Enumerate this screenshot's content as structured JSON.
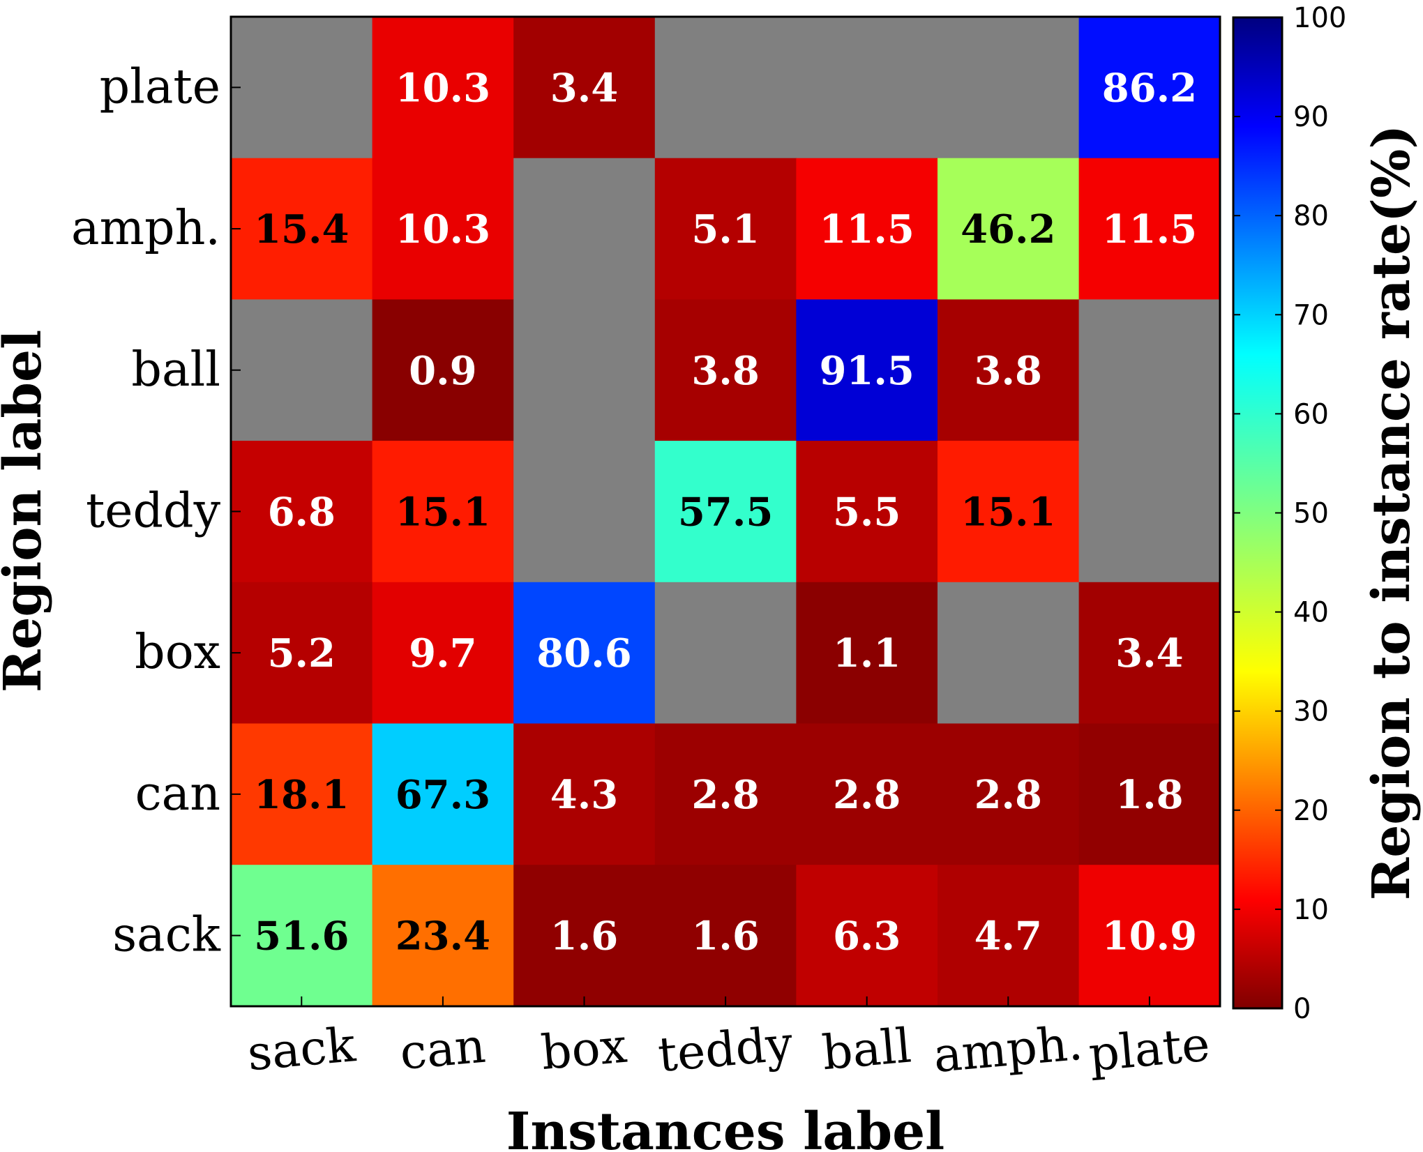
{
  "chart_data": {
    "type": "heatmap",
    "title": "",
    "xlabel": "Instances label",
    "ylabel": "Region label",
    "x_categories": [
      "sack",
      "can",
      "box",
      "teddy",
      "ball",
      "amph.",
      "plate"
    ],
    "y_categories": [
      "plate",
      "amph.",
      "ball",
      "teddy",
      "box",
      "can",
      "sack"
    ],
    "values": [
      [
        null,
        10.3,
        3.4,
        null,
        null,
        null,
        86.2
      ],
      [
        15.4,
        10.3,
        null,
        5.1,
        11.5,
        46.2,
        11.5
      ],
      [
        null,
        0.9,
        null,
        3.8,
        91.5,
        3.8,
        null
      ],
      [
        6.8,
        15.1,
        null,
        57.5,
        5.5,
        15.1,
        null
      ],
      [
        5.2,
        9.7,
        80.6,
        null,
        1.1,
        null,
        3.4
      ],
      [
        18.1,
        67.3,
        4.3,
        2.8,
        2.8,
        2.8,
        1.8
      ],
      [
        51.6,
        23.4,
        1.6,
        1.6,
        6.3,
        4.7,
        10.9
      ]
    ],
    "missing_color": "#808080",
    "colormap": "jet_reversed",
    "colorbar": {
      "label": "Region to instance rate(%)",
      "range": [
        0,
        100
      ],
      "ticks": [
        "0",
        "10",
        "20",
        "30",
        "40",
        "50",
        "60",
        "70",
        "80",
        "90",
        "100"
      ]
    }
  }
}
